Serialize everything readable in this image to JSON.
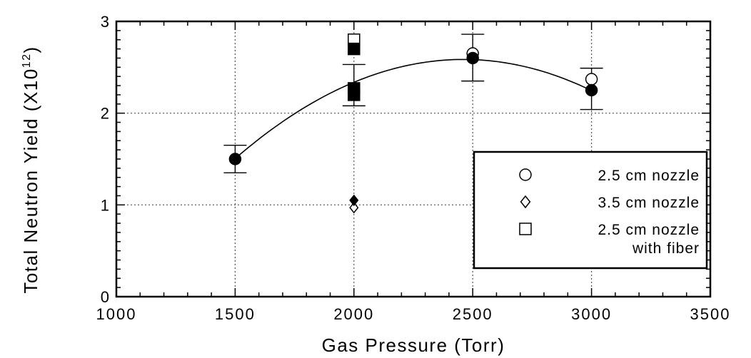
{
  "chart_data": {
    "type": "scatter",
    "title": "",
    "xlabel": "Gas Pressure (Torr)",
    "ylabel": "Total Neutron Yield (X10",
    "ylabel_exp": "12",
    "ylabel_close": ")",
    "xlim": [
      1000,
      3500
    ],
    "ylim": [
      0,
      3
    ],
    "xticks": [
      1000,
      1500,
      2000,
      2500,
      3000,
      3500
    ],
    "yticks": [
      0,
      1,
      2,
      3
    ],
    "xtick_labels": [
      "1000",
      "1500",
      "2000",
      "2500",
      "3000",
      "3500"
    ],
    "ytick_labels": [
      "0",
      "1",
      "2",
      "3"
    ],
    "grid": true,
    "legend_position": "bottom-right",
    "legend": [
      {
        "marker": "circle",
        "label": "2.5 cm nozzle"
      },
      {
        "marker": "diamond",
        "label": "3.5 cm nozzle"
      },
      {
        "marker": "square",
        "label": "2.5 cm nozzle",
        "label2": "with fiber"
      }
    ],
    "series": [
      {
        "marker": "circle",
        "filled": false,
        "points": [
          {
            "x": 2500,
            "y": 2.65
          },
          {
            "x": 3000,
            "y": 2.37
          }
        ]
      },
      {
        "marker": "circle",
        "filled": true,
        "points": [
          {
            "x": 1500,
            "y": 1.5
          },
          {
            "x": 2500,
            "y": 2.6
          },
          {
            "x": 3000,
            "y": 2.25
          }
        ]
      },
      {
        "marker": "diamond",
        "filled": false,
        "points": [
          {
            "x": 2000,
            "y": 0.97
          }
        ]
      },
      {
        "marker": "diamond",
        "filled": true,
        "points": [
          {
            "x": 2000,
            "y": 1.05
          }
        ]
      },
      {
        "marker": "square",
        "filled": false,
        "points": [
          {
            "x": 2000,
            "y": 2.8
          }
        ]
      },
      {
        "marker": "square",
        "filled": true,
        "points": [
          {
            "x": 2000,
            "y": 2.7
          },
          {
            "x": 2000,
            "y": 2.27
          },
          {
            "x": 2000,
            "y": 2.2
          }
        ]
      }
    ],
    "error_bars": [
      {
        "x": 1500,
        "low": 1.35,
        "high": 1.65
      },
      {
        "x": 2000,
        "low": 2.08,
        "high": 2.53
      },
      {
        "x": 2500,
        "low": 2.35,
        "high": 2.86
      },
      {
        "x": 3000,
        "low": 2.04,
        "high": 2.49
      }
    ],
    "fit_curve": {
      "type": "quadratic",
      "points": [
        {
          "x": 1500,
          "y": 1.5
        },
        {
          "x": 2000,
          "y": 2.35
        },
        {
          "x": 2500,
          "y": 2.57
        },
        {
          "x": 3000,
          "y": 2.25
        }
      ]
    }
  }
}
